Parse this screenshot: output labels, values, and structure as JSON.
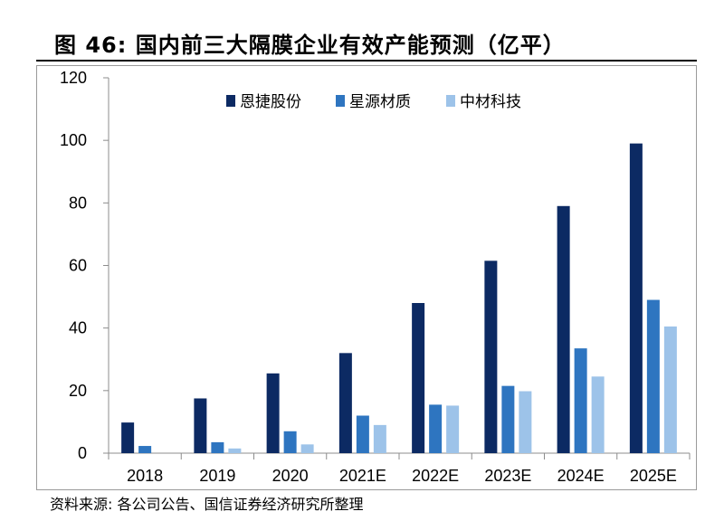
{
  "title": "图 46:  国内前三大隔膜企业有效产能预测（亿平）",
  "source": "资料来源: 各公司公告、国信证券经济研究所整理",
  "chart_data": {
    "type": "bar",
    "title": "国内前三大隔膜企业有效产能预测（亿平）",
    "xlabel": "",
    "ylabel": "",
    "ylim": [
      0,
      120
    ],
    "yticks": [
      0,
      20,
      40,
      60,
      80,
      100,
      120
    ],
    "categories": [
      "2018",
      "2019",
      "2020",
      "2021E",
      "2022E",
      "2023E",
      "2024E",
      "2025E"
    ],
    "legend_position": "top-right",
    "series": [
      {
        "name": "恩捷股份",
        "color": "#0c2a63",
        "values": [
          9.8,
          17.5,
          25.5,
          32,
          48,
          61.5,
          79,
          99
        ]
      },
      {
        "name": "星源材质",
        "color": "#2e75c0",
        "values": [
          2.3,
          3.5,
          7,
          12,
          15.5,
          21.5,
          33.5,
          49
        ]
      },
      {
        "name": "中材科技",
        "color": "#9dc3e9",
        "values": [
          0,
          1.5,
          2.8,
          9,
          15.2,
          19.8,
          24.5,
          40.5
        ]
      }
    ]
  }
}
